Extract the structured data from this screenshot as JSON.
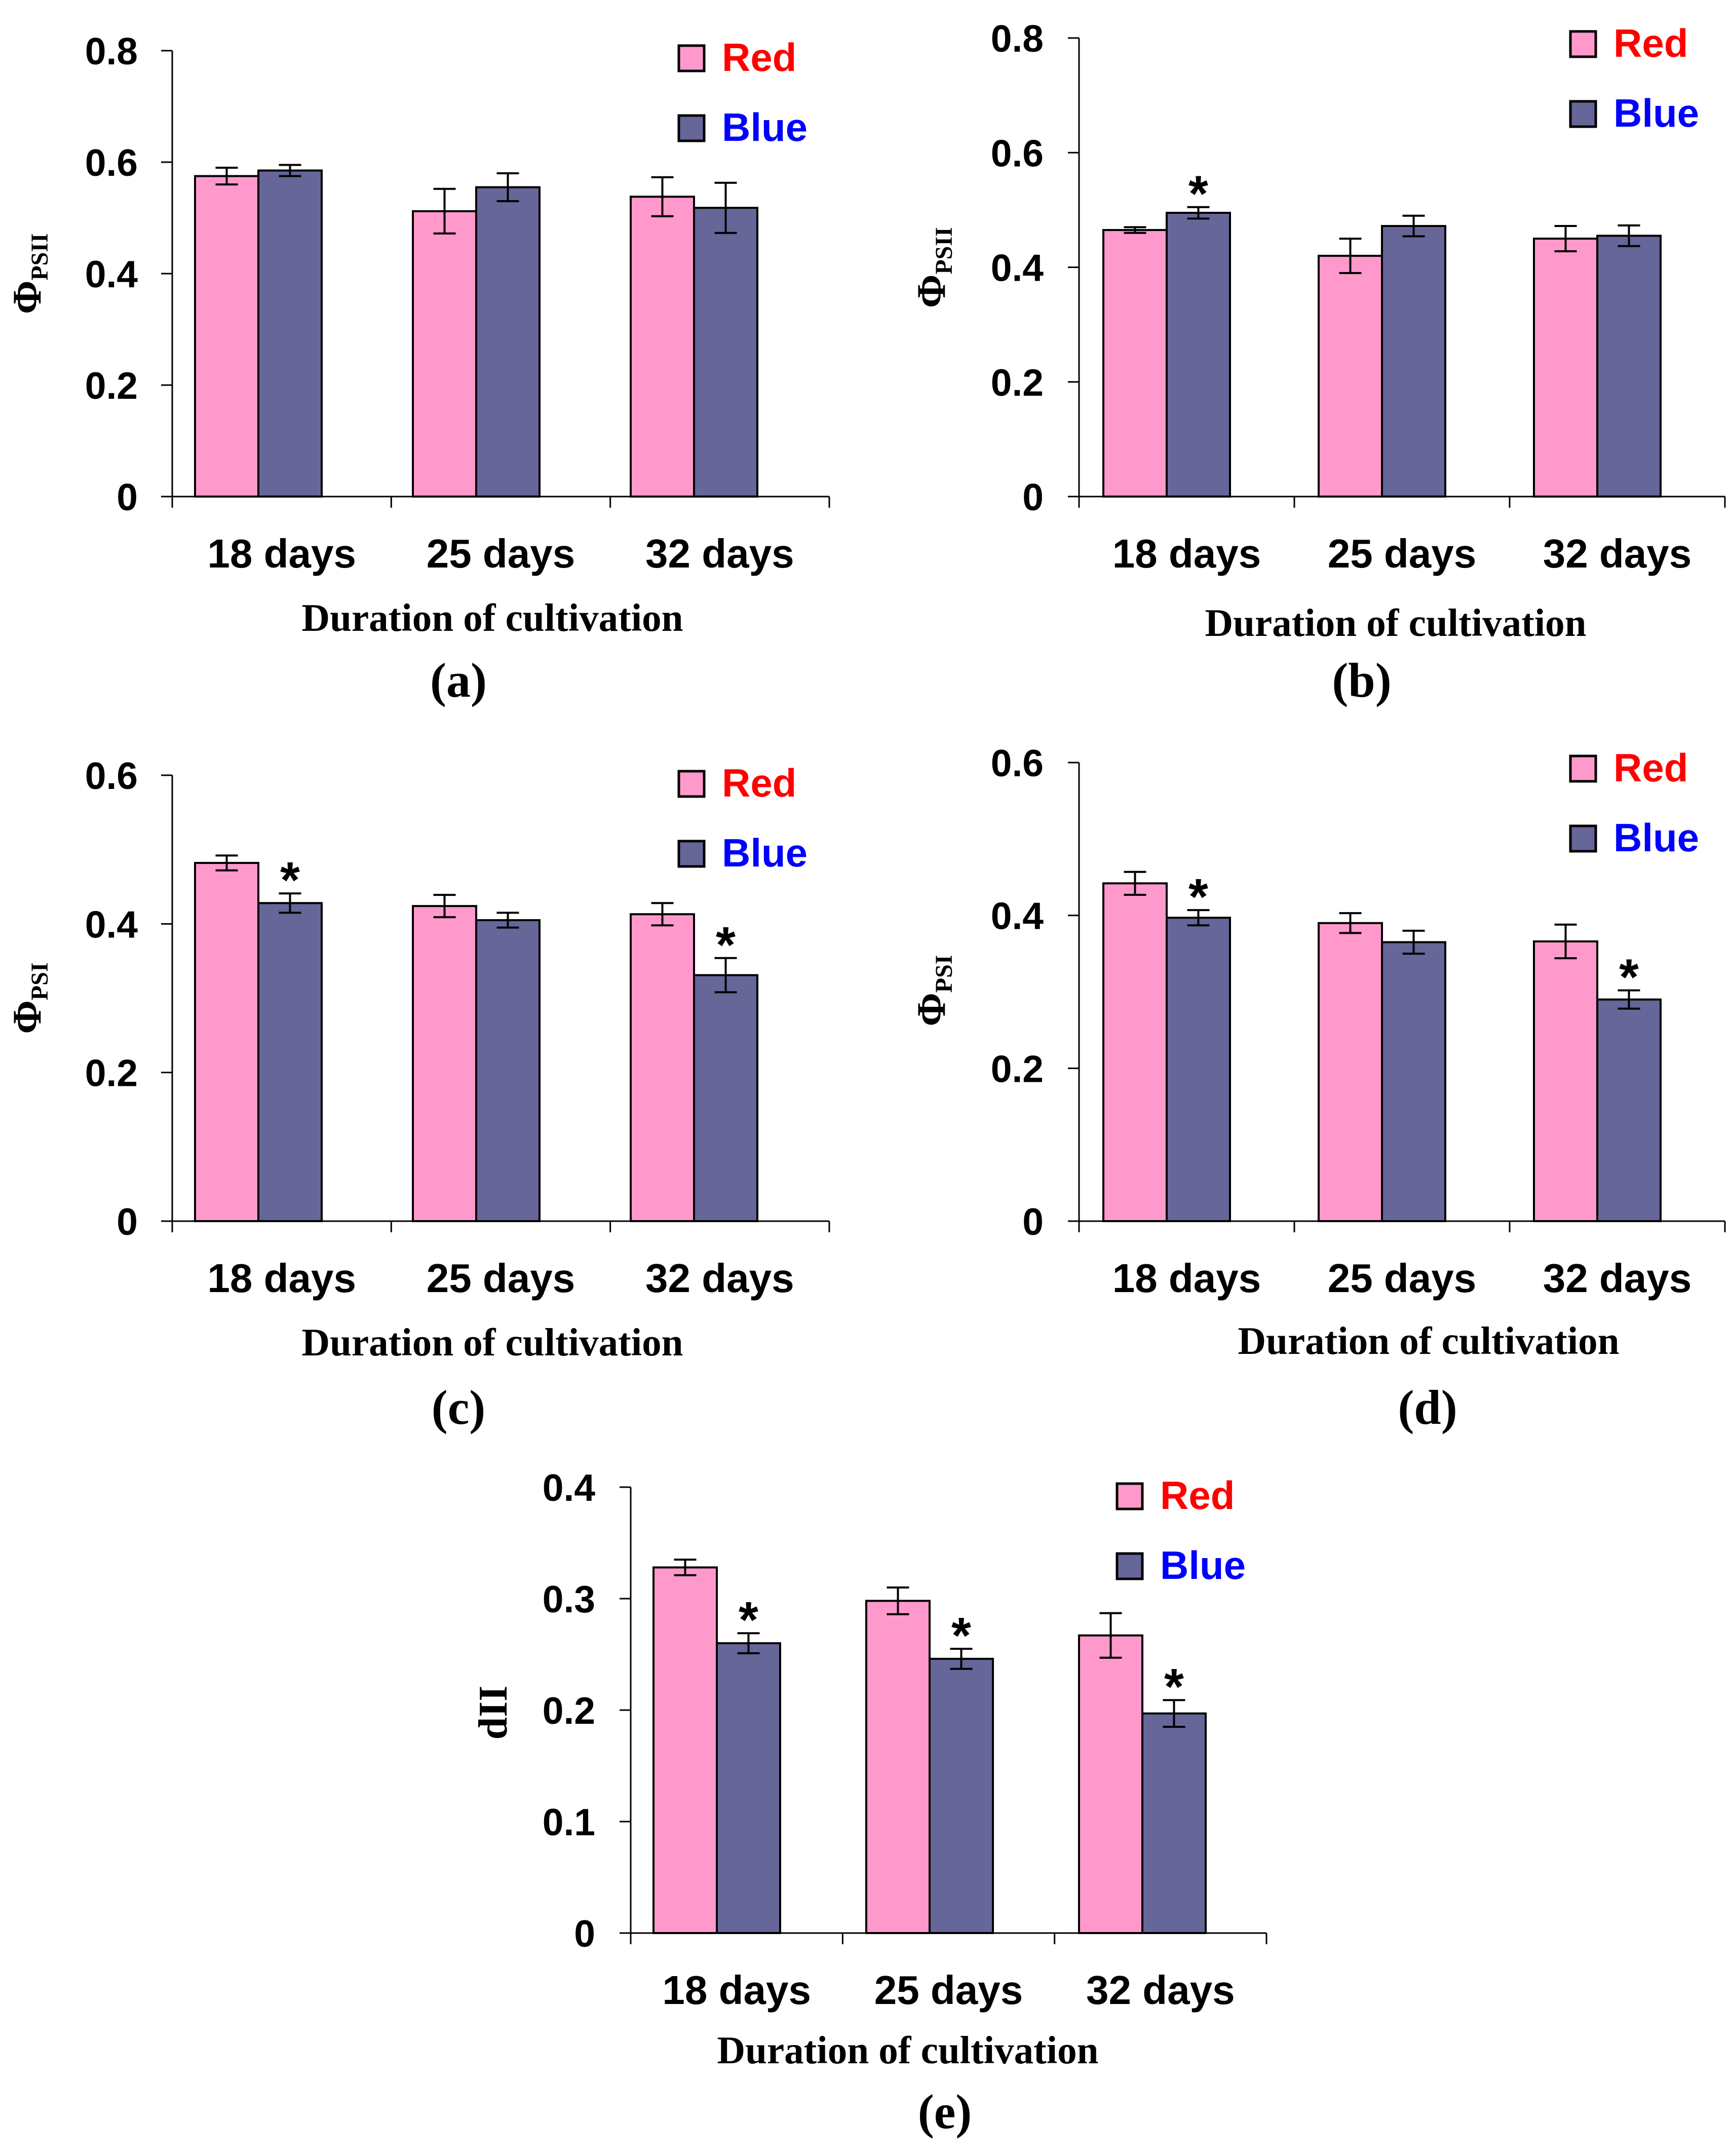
{
  "colors": {
    "red_bar": "#ff99cc",
    "blue_bar": "#666699",
    "red_text": "#ff0000",
    "blue_text": "#0000ff",
    "axis": "#000000"
  },
  "chart_data": [
    {
      "type": "bar",
      "panel_label": "(a)",
      "ylabel": "Φ",
      "ylabel_sub": "PSII",
      "xlabel": "Duration of cultivation",
      "categories": [
        "18 days",
        "25 days",
        "32 days"
      ],
      "ylim": [
        0,
        0.8
      ],
      "yticks": [
        0,
        0.2,
        0.4,
        0.6,
        0.8
      ],
      "ytick_labels": [
        "0",
        "0.2",
        "0.4",
        "0.6",
        "0.8"
      ],
      "series": [
        {
          "name": "Red",
          "values": [
            0.575,
            0.512,
            0.538
          ],
          "errors": [
            0.015,
            0.04,
            0.035
          ],
          "stars": [
            false,
            false,
            false
          ]
        },
        {
          "name": "Blue",
          "values": [
            0.585,
            0.555,
            0.518
          ],
          "errors": [
            0.01,
            0.025,
            0.045
          ],
          "stars": [
            false,
            false,
            false
          ]
        }
      ]
    },
    {
      "type": "bar",
      "panel_label": "(b)",
      "ylabel": "Φ",
      "ylabel_sub": "PSII",
      "xlabel": "Duration of cultivation",
      "categories": [
        "18 days",
        "25 days",
        "32 days"
      ],
      "ylim": [
        0,
        0.8
      ],
      "yticks": [
        0,
        0.2,
        0.4,
        0.6,
        0.8
      ],
      "ytick_labels": [
        "0",
        "0.2",
        "0.4",
        "0.6",
        "0.8"
      ],
      "series": [
        {
          "name": "Red",
          "values": [
            0.465,
            0.42,
            0.45
          ],
          "errors": [
            0.005,
            0.03,
            0.022
          ],
          "stars": [
            false,
            false,
            false
          ]
        },
        {
          "name": "Blue",
          "values": [
            0.495,
            0.472,
            0.455
          ],
          "errors": [
            0.01,
            0.018,
            0.018
          ],
          "stars": [
            true,
            false,
            false
          ]
        }
      ]
    },
    {
      "type": "bar",
      "panel_label": "(c)",
      "ylabel": "Φ",
      "ylabel_sub": "PSI",
      "xlabel": "Duration of cultivation",
      "categories": [
        "18 days",
        "25 days",
        "32 days"
      ],
      "ylim": [
        0,
        0.6
      ],
      "yticks": [
        0,
        0.2,
        0.4,
        0.6
      ],
      "ytick_labels": [
        "0",
        "0.2",
        "0.4",
        "0.6"
      ],
      "series": [
        {
          "name": "Red",
          "values": [
            0.482,
            0.424,
            0.413
          ],
          "errors": [
            0.01,
            0.015,
            0.015
          ],
          "stars": [
            false,
            false,
            false
          ]
        },
        {
          "name": "Blue",
          "values": [
            0.428,
            0.405,
            0.331
          ],
          "errors": [
            0.013,
            0.01,
            0.023
          ],
          "stars": [
            true,
            false,
            true
          ]
        }
      ]
    },
    {
      "type": "bar",
      "panel_label": "(d)",
      "ylabel": "Φ",
      "ylabel_sub": "PSI",
      "xlabel": "Duration of cultivation",
      "categories": [
        "18 days",
        "25 days",
        "32 days"
      ],
      "ylim": [
        0,
        0.6
      ],
      "yticks": [
        0,
        0.2,
        0.4,
        0.6
      ],
      "ytick_labels": [
        "0",
        "0.2",
        "0.4",
        "0.6"
      ],
      "series": [
        {
          "name": "Red",
          "values": [
            0.442,
            0.39,
            0.366
          ],
          "errors": [
            0.015,
            0.013,
            0.022
          ],
          "stars": [
            false,
            false,
            false
          ]
        },
        {
          "name": "Blue",
          "values": [
            0.397,
            0.365,
            0.29
          ],
          "errors": [
            0.01,
            0.015,
            0.012
          ],
          "stars": [
            true,
            false,
            true
          ]
        }
      ]
    },
    {
      "type": "bar",
      "panel_label": "(e)",
      "ylabel": "dII",
      "ylabel_sub": "",
      "xlabel": "Duration of cultivation",
      "categories": [
        "18 days",
        "25 days",
        "32 days"
      ],
      "ylim": [
        0,
        0.4
      ],
      "yticks": [
        0,
        0.1,
        0.2,
        0.3,
        0.4
      ],
      "ytick_labels": [
        "0",
        "0.1",
        "0.2",
        "0.3",
        "0.4"
      ],
      "series": [
        {
          "name": "Red",
          "values": [
            0.328,
            0.298,
            0.267
          ],
          "errors": [
            0.007,
            0.012,
            0.02
          ],
          "stars": [
            false,
            false,
            false
          ]
        },
        {
          "name": "Blue",
          "values": [
            0.26,
            0.246,
            0.197
          ],
          "errors": [
            0.009,
            0.009,
            0.012
          ],
          "stars": [
            true,
            true,
            true
          ]
        }
      ]
    }
  ]
}
